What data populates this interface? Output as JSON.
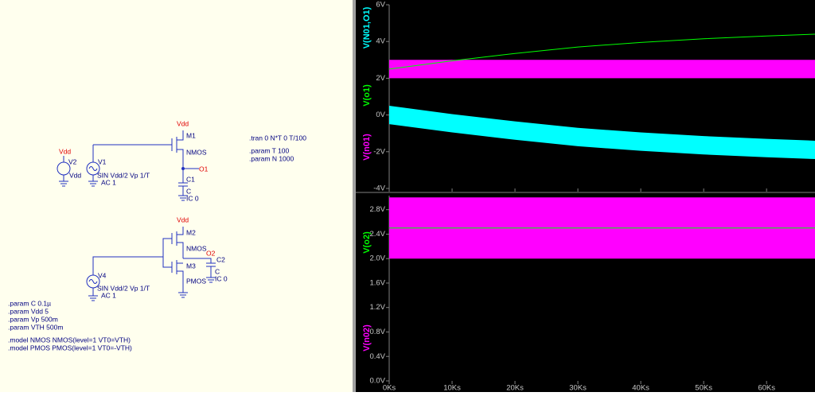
{
  "schematic": {
    "texts": [
      "Vdd",
      "V2",
      "Vdd",
      "V1",
      "SIN Vdd/2 Vp 1/T",
      "AC 1",
      "Vdd",
      "M1",
      "NMOS",
      "O1",
      "C1",
      "C",
      "IC 0",
      ".tran 0 N*T 0 T/100",
      ".param T 100",
      ".param N 1000",
      "Vdd",
      "M2",
      "NMOS",
      "M3",
      "PMOS",
      "O2",
      "C2",
      "C",
      "IC 0",
      "V4",
      "SIN Vdd/2 Vp 1/T",
      "AC 1",
      ".param C 0.1µ",
      ".param Vdd 5",
      ".param Vp 500m",
      ".param VTH 500m",
      ".model NMOS NMOS(level=1 VT0=VTH)",
      ".model PMOS PMOS(level=1 VT0=-VTH)"
    ]
  },
  "x": [
    0,
    10000,
    20000,
    30000,
    40000,
    50000,
    60000,
    67700
  ],
  "xlim": [
    0,
    67700
  ],
  "xticks": [
    {
      "value": 0,
      "label": "0Ks"
    },
    {
      "value": 10000,
      "label": "10Ks"
    },
    {
      "value": 20000,
      "label": "20Ks"
    },
    {
      "value": 30000,
      "label": "30Ks"
    },
    {
      "value": 40000,
      "label": "40Ks"
    },
    {
      "value": 50000,
      "label": "50Ks"
    },
    {
      "value": 60000,
      "label": "60Ks"
    }
  ],
  "plots": [
    {
      "ylim": [
        -4,
        6
      ],
      "yticks": [
        {
          "value": -4,
          "label": "-4V"
        },
        {
          "value": -2,
          "label": "-2V"
        },
        {
          "value": 0,
          "label": "0V"
        },
        {
          "value": 2,
          "label": "2V"
        },
        {
          "value": 4,
          "label": "4V"
        },
        {
          "value": 6,
          "label": "6V"
        }
      ],
      "traces": [
        {
          "name": "V(N01,O1)",
          "color": "#00ffff",
          "upper": [
            0.5,
            0.05,
            -0.35,
            -0.7,
            -0.95,
            -1.15,
            -1.3,
            -1.4
          ],
          "lower": [
            -0.5,
            -0.95,
            -1.35,
            -1.7,
            -1.95,
            -2.15,
            -2.3,
            -2.4
          ]
        },
        {
          "name": "V(o1)",
          "color": "#00ff00",
          "values": [
            2.5,
            2.95,
            3.35,
            3.7,
            3.95,
            4.15,
            4.3,
            4.4
          ]
        },
        {
          "name": "V(n01)",
          "color": "#ff00ff",
          "upper": [
            3,
            3,
            3,
            3,
            3,
            3,
            3,
            3
          ],
          "lower": [
            2,
            2,
            2,
            2,
            2,
            2,
            2,
            2
          ]
        }
      ]
    },
    {
      "ylim": [
        0,
        3.03
      ],
      "yticks": [
        {
          "value": 0,
          "label": "0.0V"
        },
        {
          "value": 0.4,
          "label": "0.4V"
        },
        {
          "value": 0.8,
          "label": "0.8V"
        },
        {
          "value": 1.2,
          "label": "1.2V"
        },
        {
          "value": 1.6,
          "label": "1.6V"
        },
        {
          "value": 2.0,
          "label": "2.0V"
        },
        {
          "value": 2.4,
          "label": "2.4V"
        },
        {
          "value": 2.8,
          "label": "2.8V"
        }
      ],
      "traces": [
        {
          "name": "V(o2)",
          "color": "#00ff00",
          "values": [
            2.5,
            2.5,
            2.5,
            2.5,
            2.5,
            2.5,
            2.5,
            2.5
          ]
        },
        {
          "name": "V(n02)",
          "color": "#ff00ff",
          "upper": [
            3,
            3,
            3,
            3,
            3,
            3,
            3,
            3
          ],
          "lower": [
            2,
            2,
            2,
            2,
            2,
            2,
            2,
            2
          ]
        }
      ]
    }
  ]
}
